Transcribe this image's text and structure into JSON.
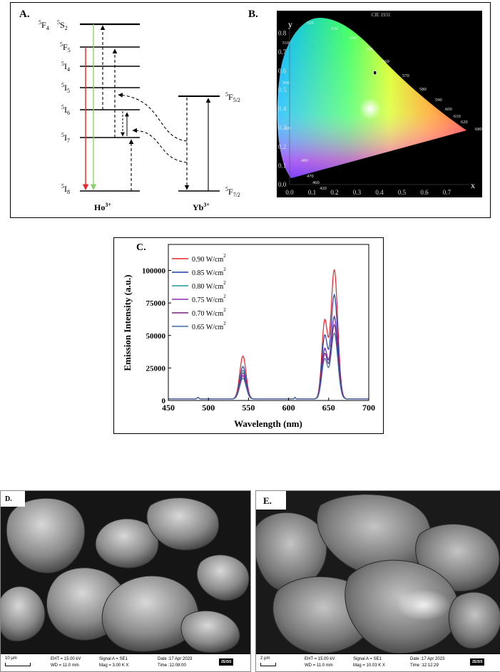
{
  "panelA": {
    "label": "A.",
    "levels": [
      {
        "sup": "5",
        "base": "F",
        "sub": "4"
      },
      {
        "sup": "5",
        "base": "S",
        "sub": "2"
      },
      {
        "sup": "5",
        "base": "F",
        "sub": "5"
      },
      {
        "sup": "5",
        "base": "I",
        "sub": "4"
      },
      {
        "sup": "5",
        "base": "I",
        "sub": "5"
      },
      {
        "sup": "5",
        "base": "I",
        "sub": "6"
      },
      {
        "sup": "5",
        "base": "I",
        "sub": "7"
      },
      {
        "sup": "5",
        "base": "I",
        "sub": "8"
      }
    ],
    "yb_levels": [
      {
        "sup": "5",
        "base": "F",
        "sub": "5/2"
      },
      {
        "sup": "5",
        "base": "F",
        "sub": "7/2"
      }
    ],
    "ion_ho": {
      "base": "Ho",
      "sup": "3+"
    },
    "ion_yb": {
      "base": "Yb",
      "sup": "3+"
    },
    "colors": {
      "red": "#e8232b",
      "green": "#8bd16a"
    }
  },
  "panelB": {
    "label": "B.",
    "title": "CIE 1931",
    "x_axis_label": "x",
    "y_axis_label": "y",
    "x_ticks": [
      "0.0",
      "0.1",
      "0.2",
      "0.3",
      "0.4",
      "0.5",
      "0.6",
      "0.7"
    ],
    "y_ticks": [
      "0.0",
      "0.1",
      "0.2",
      "0.3",
      "0.4",
      "0.5",
      "0.6",
      "0.7",
      "0.8"
    ],
    "wavelength_labels": [
      "520",
      "530",
      "540",
      "550",
      "560",
      "570",
      "580",
      "590",
      "600",
      "610",
      "620",
      "680",
      "510",
      "500",
      "490",
      "480",
      "470",
      "460",
      "420"
    ],
    "marker": {
      "x": 0.38,
      "y": 0.59
    }
  },
  "panelC": {
    "label": "C.",
    "chart_data": {
      "type": "line",
      "xlabel": "Wavelength (nm)",
      "ylabel": "Emission Intensity (a.u.)",
      "xlim": [
        450,
        700
      ],
      "ylim": [
        0,
        120000
      ],
      "x_ticks": [
        "450",
        "500",
        "550",
        "600",
        "650",
        "700"
      ],
      "y_ticks": [
        "0",
        "25000",
        "50000",
        "75000",
        "100000"
      ],
      "x_tick_values": [
        450,
        500,
        550,
        600,
        650,
        700
      ],
      "y_tick_values": [
        0,
        25000,
        50000,
        75000,
        100000
      ],
      "legend_placement": "top-left",
      "series": [
        {
          "name": "0.90 W/cm",
          "unit_sup": "2",
          "color": "#e8232b",
          "peak_green": 33000,
          "peak_red": 108000
        },
        {
          "name": "0.85 W/cm",
          "unit_sup": "2",
          "color": "#1f3fae",
          "peak_green": 25000,
          "peak_red": 87000
        },
        {
          "name": "0.80 W/cm",
          "unit_sup": "2",
          "color": "#1a9a9a",
          "peak_green": 22000,
          "peak_red": 68000
        },
        {
          "name": "0.75 W/cm",
          "unit_sup": "2",
          "color": "#8a2bb0",
          "peak_green": 20000,
          "peak_red": 69000
        },
        {
          "name": "0.70 W/cm",
          "unit_sup": "2",
          "color": "#7a1f7a",
          "peak_green": 18000,
          "peak_red": 62000
        },
        {
          "name": "0.65 W/cm",
          "unit_sup": "2",
          "color": "#3c6fa6",
          "peak_green": 16000,
          "peak_red": 55000
        }
      ]
    }
  },
  "panelD": {
    "label": "D.",
    "bar": {
      "scale": "10 µm",
      "eht": "EHT = 15.00 kV",
      "wd": "WD = 11.0 mm",
      "signal": "Signal A = SE1",
      "mag": "Mag =   3.00 K X",
      "date": "Date :17 Apr 2023",
      "time": "Time :12:08:00",
      "logo": "ZEISS"
    }
  },
  "panelE": {
    "label": "E.",
    "bar": {
      "scale": "2 µm",
      "eht": "EHT = 15.00 kV",
      "wd": "WD = 11.0 mm",
      "signal": "Signal A = SE1",
      "mag": "Mag =  10.03 K X",
      "date": "Date :17 Apr 2023",
      "time": "Time :12:12:29",
      "logo": "ZEISS"
    }
  }
}
